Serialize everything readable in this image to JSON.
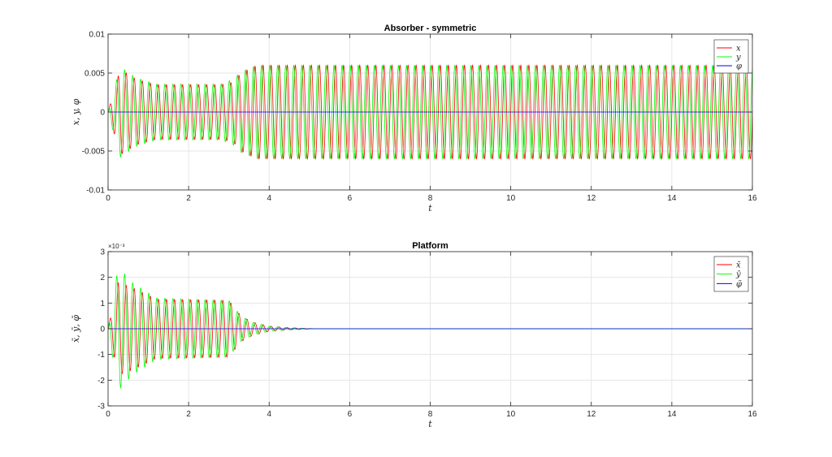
{
  "chart_data": [
    {
      "type": "line",
      "title": "Absorber - symmetric",
      "xlabel": "t",
      "ylabel": "x, y, φ",
      "xlim": [
        0,
        16
      ],
      "ylim": [
        -0.01,
        0.01
      ],
      "x_ticks": [
        "0",
        "2",
        "4",
        "6",
        "8",
        "10",
        "12",
        "14",
        "16"
      ],
      "y_ticks": [
        "-0.01",
        "-0.005",
        "0",
        "0.005",
        "0.01"
      ],
      "grid": true,
      "legend_position": "top-right",
      "series": [
        {
          "name": "x",
          "color": "#ff0000",
          "frequency_hz": 5.0,
          "phase": 0.0,
          "amplitude_envelope": [
            [
              0,
              0.0
            ],
            [
              0.3,
              0.0055
            ],
            [
              0.7,
              0.0042
            ],
            [
              1.2,
              0.0035
            ],
            [
              2.8,
              0.0035
            ],
            [
              3.1,
              0.0038
            ],
            [
              3.3,
              0.005
            ],
            [
              3.7,
              0.006
            ],
            [
              16,
              0.006
            ]
          ]
        },
        {
          "name": "y",
          "color": "#00ff00",
          "frequency_hz": 5.0,
          "phase": 1.2,
          "amplitude_envelope": [
            [
              0,
              0.0
            ],
            [
              0.3,
              0.0058
            ],
            [
              0.7,
              0.0044
            ],
            [
              1.2,
              0.0036
            ],
            [
              2.8,
              0.0036
            ],
            [
              3.1,
              0.0042
            ],
            [
              3.3,
              0.0052
            ],
            [
              3.7,
              0.006
            ],
            [
              16,
              0.006
            ]
          ]
        },
        {
          "name": "φ",
          "color": "#0000ff",
          "constant": 0
        }
      ]
    },
    {
      "type": "line",
      "title": "Platform",
      "xlabel": "t",
      "ylabel": "x̄, ȳ, φ̄",
      "y_scale_exponent": "×10⁻³",
      "xlim": [
        0,
        16
      ],
      "ylim": [
        -3,
        3
      ],
      "x_ticks": [
        "0",
        "2",
        "4",
        "6",
        "8",
        "10",
        "12",
        "14",
        "16"
      ],
      "y_ticks": [
        "-3",
        "-2",
        "-1",
        "0",
        "1",
        "2",
        "3"
      ],
      "grid": true,
      "legend_position": "top-right",
      "series": [
        {
          "name": "x̄",
          "color": "#ff0000",
          "frequency_hz": 5.0,
          "phase": 0.0,
          "amplitude_envelope": [
            [
              0,
              0.0
            ],
            [
              0.25,
              1.8
            ],
            [
              0.6,
              1.6
            ],
            [
              1.2,
              1.15
            ],
            [
              3.0,
              1.1
            ],
            [
              3.3,
              0.5
            ],
            [
              3.6,
              0.25
            ],
            [
              4.0,
              0.1
            ],
            [
              4.5,
              0.04
            ],
            [
              5.2,
              0.0
            ],
            [
              16,
              0.0
            ]
          ]
        },
        {
          "name": "ȳ",
          "color": "#00ff00",
          "frequency_hz": 5.0,
          "phase": 1.2,
          "amplitude_envelope": [
            [
              0,
              0.0
            ],
            [
              0.25,
              2.4
            ],
            [
              0.6,
              1.8
            ],
            [
              1.2,
              1.2
            ],
            [
              3.0,
              1.1
            ],
            [
              3.3,
              0.5
            ],
            [
              3.6,
              0.25
            ],
            [
              4.0,
              0.1
            ],
            [
              4.5,
              0.04
            ],
            [
              5.2,
              0.0
            ],
            [
              16,
              0.0
            ]
          ]
        },
        {
          "name": "φ̄",
          "color": "#0000ff",
          "constant": 0
        }
      ]
    }
  ]
}
